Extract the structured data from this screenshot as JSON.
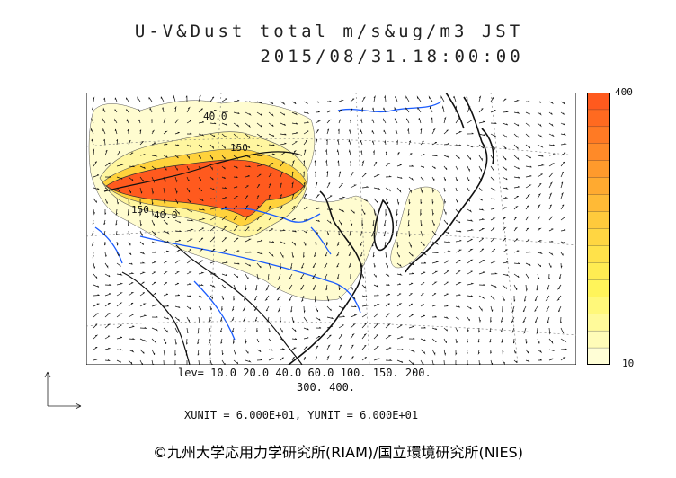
{
  "header": {
    "title_line1": "U-V&Dust total m/s&ug/m3 JST",
    "title_line2": "2015/08/31.18:00:00"
  },
  "legend": {
    "max_label": "400",
    "min_label": "10",
    "colors": [
      "#ff5a1e",
      "#ff6a20",
      "#ff7a24",
      "#ff8a28",
      "#ff9a2c",
      "#ffaa30",
      "#ffba36",
      "#ffca3c",
      "#ffd642",
      "#ffe24a",
      "#ffec52",
      "#fff45a",
      "#fff87a",
      "#fffa9a",
      "#fffcb8",
      "#fffed6"
    ]
  },
  "map": {
    "contour_labels": [
      "40.0",
      "150",
      "150",
      "40.0"
    ],
    "colors": {
      "dust_high": "#ff5a1e",
      "dust_mid": "#ffd23c",
      "dust_low": "#fff6a0",
      "dust_faint": "#fffcd0",
      "coast": "#111111",
      "river": "#1a5cff",
      "grid": "#888888"
    }
  },
  "footer": {
    "levels_line1": "lev= 10.0 20.0 40.0 60.0 100. 150. 200.",
    "levels_line2": "300. 400.",
    "units": "XUNIT = 6.000E+01, YUNIT = 6.000E+01",
    "copyright": "©九州大学応用力学研究所(RIAM)/国立環境研究所(NIES)"
  }
}
